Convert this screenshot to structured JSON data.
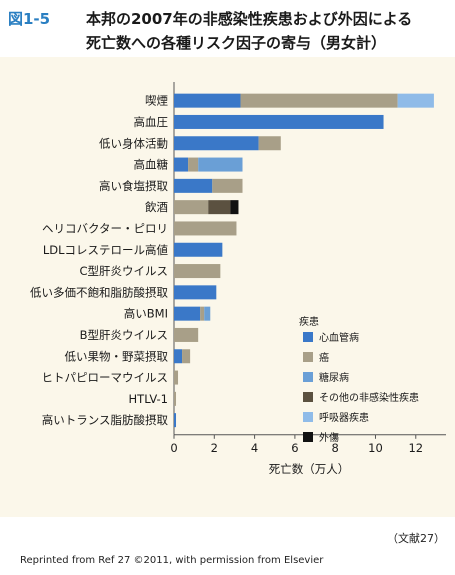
{
  "figure": {
    "label": "図1-5",
    "title_line1": "本邦の2007年の非感染性疾患および外因による",
    "title_line2": "死亡数への各種リスク因子の寄与（男女計）",
    "source": "（文献27）",
    "credit": "Reprinted from Ref 27 ©2011, with permission from Elsevier"
  },
  "colors": {
    "background": "#fbf7ea",
    "title_label": "#2a7fc2"
  },
  "chart_data": {
    "type": "bar",
    "orientation": "horizontal",
    "stacked": true,
    "xlabel": "死亡数（万人）",
    "xlim": [
      0,
      13.5
    ],
    "xticks": [
      0,
      2,
      4,
      6,
      8,
      10,
      12
    ],
    "legend_title": "疾患",
    "legend_position": "lower-right",
    "categories": [
      "喫煙",
      "高血圧",
      "低い身体活動",
      "高血糖",
      "高い食塩摂取",
      "飲酒",
      "ヘリコバクター・ピロリ",
      "LDLコレステロール高値",
      "C型肝炎ウイルス",
      "低い多価不飽和脂肪酸摂取",
      "高いBMI",
      "B型肝炎ウイルス",
      "低い果物・野菜摂取",
      "ヒトパピローマウイルス",
      "HTLV-1",
      "高いトランス脂肪酸摂取"
    ],
    "series": [
      {
        "name": "心血管病",
        "color": "#3a78c8",
        "values": [
          3.3,
          10.4,
          4.2,
          0.7,
          1.9,
          0.0,
          0.0,
          2.4,
          0.0,
          2.1,
          1.3,
          0.0,
          0.4,
          0.0,
          0.0,
          0.1
        ]
      },
      {
        "name": "癌",
        "color": "#a89f88",
        "values": [
          7.8,
          0.0,
          1.1,
          0.5,
          1.5,
          1.7,
          3.1,
          0.0,
          2.3,
          0.0,
          0.2,
          1.2,
          0.4,
          0.2,
          0.1,
          0.0
        ]
      },
      {
        "name": "糖尿病",
        "color": "#6a9fd6",
        "values": [
          0.0,
          0.0,
          0.0,
          2.2,
          0.0,
          0.0,
          0.0,
          0.0,
          0.0,
          0.0,
          0.3,
          0.0,
          0.0,
          0.0,
          0.0,
          0.0
        ]
      },
      {
        "name": "その他の非感染性疾患",
        "color": "#5b5140",
        "values": [
          0.0,
          0.0,
          0.0,
          0.0,
          0.0,
          1.1,
          0.0,
          0.0,
          0.0,
          0.0,
          0.0,
          0.0,
          0.0,
          0.0,
          0.0,
          0.0
        ]
      },
      {
        "name": "呼吸器疾患",
        "color": "#8fbbe8",
        "values": [
          1.8,
          0.0,
          0.0,
          0.0,
          0.0,
          0.0,
          0.0,
          0.0,
          0.0,
          0.0,
          0.0,
          0.0,
          0.0,
          0.0,
          0.0,
          0.0
        ]
      },
      {
        "name": "外傷",
        "color": "#111111",
        "values": [
          0.0,
          0.0,
          0.0,
          0.0,
          0.0,
          0.4,
          0.0,
          0.0,
          0.0,
          0.0,
          0.0,
          0.0,
          0.0,
          0.0,
          0.0,
          0.0
        ]
      }
    ]
  }
}
